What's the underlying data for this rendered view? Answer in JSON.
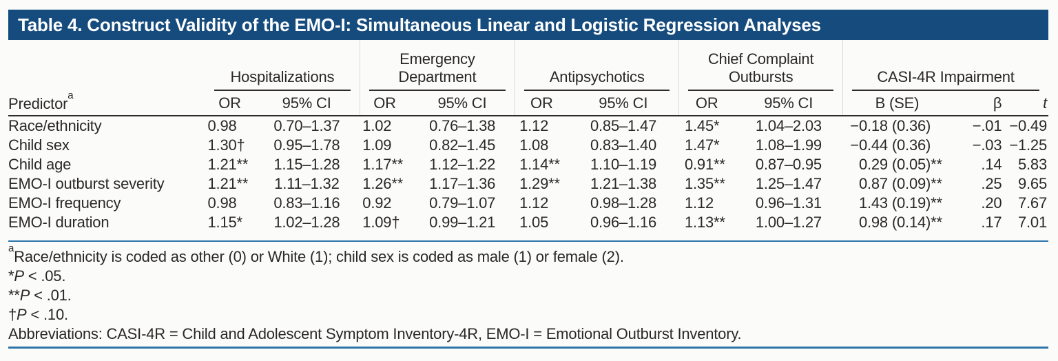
{
  "title": "Table 4. Construct Validity of the EMO-I: Simultaneous Linear and Logistic Regression Analyses",
  "header": {
    "predictor_label": "Predictor",
    "predictor_sup": "a",
    "groups": [
      {
        "label": "Hospitalizations",
        "cols": [
          "OR",
          "95% CI"
        ]
      },
      {
        "label": "Emergency\nDepartment",
        "cols": [
          "OR",
          "95% CI"
        ]
      },
      {
        "label": "Antipsychotics",
        "cols": [
          "OR",
          "95% CI"
        ]
      },
      {
        "label": "Chief Complaint\nOutbursts",
        "cols": [
          "OR",
          "95% CI"
        ]
      },
      {
        "label": "CASI-4R Impairment",
        "cols": [
          "B (SE)",
          "β",
          "t"
        ]
      }
    ]
  },
  "rows": [
    {
      "predictor": "Race/ethnicity",
      "c": [
        {
          "m": "0.98",
          "s": ""
        },
        {
          "m": "0.70–1.37",
          "s": ""
        },
        {
          "m": "1.02",
          "s": ""
        },
        {
          "m": "0.76–1.38",
          "s": ""
        },
        {
          "m": "1.12",
          "s": ""
        },
        {
          "m": "0.85–1.47",
          "s": ""
        },
        {
          "m": "1.45",
          "s": "*"
        },
        {
          "m": "1.04–2.03",
          "s": ""
        },
        {
          "m": "−0.18 (0.36)",
          "s": ""
        },
        {
          "m": "−.01",
          "s": ""
        },
        {
          "m": "−0.49",
          "s": ""
        }
      ]
    },
    {
      "predictor": "Child sex",
      "c": [
        {
          "m": "1.30",
          "s": "†"
        },
        {
          "m": "0.95–1.78",
          "s": ""
        },
        {
          "m": "1.09",
          "s": ""
        },
        {
          "m": "0.82–1.45",
          "s": ""
        },
        {
          "m": "1.08",
          "s": ""
        },
        {
          "m": "0.83–1.40",
          "s": ""
        },
        {
          "m": "1.47",
          "s": "*"
        },
        {
          "m": "1.08–1.99",
          "s": ""
        },
        {
          "m": "−0.44 (0.36)",
          "s": ""
        },
        {
          "m": "−.03",
          "s": ""
        },
        {
          "m": "−1.25",
          "s": ""
        }
      ]
    },
    {
      "predictor": "Child age",
      "c": [
        {
          "m": "1.21",
          "s": "**"
        },
        {
          "m": "1.15–1.28",
          "s": ""
        },
        {
          "m": "1.17",
          "s": "**"
        },
        {
          "m": "1.12–1.22",
          "s": ""
        },
        {
          "m": "1.14",
          "s": "**"
        },
        {
          "m": "1.10–1.19",
          "s": ""
        },
        {
          "m": "0.91",
          "s": "**"
        },
        {
          "m": "0.87–0.95",
          "s": ""
        },
        {
          "m": "0.29 (0.05)",
          "s": "**"
        },
        {
          "m": ".14",
          "s": ""
        },
        {
          "m": "5.83",
          "s": ""
        }
      ]
    },
    {
      "predictor": "EMO-I outburst severity",
      "c": [
        {
          "m": "1.21",
          "s": "**"
        },
        {
          "m": "1.11–1.32",
          "s": ""
        },
        {
          "m": "1.26",
          "s": "**"
        },
        {
          "m": "1.17–1.36",
          "s": ""
        },
        {
          "m": "1.29",
          "s": "**"
        },
        {
          "m": "1.21–1.38",
          "s": ""
        },
        {
          "m": "1.35",
          "s": "**"
        },
        {
          "m": "1.25–1.47",
          "s": ""
        },
        {
          "m": "0.87 (0.09)",
          "s": "**"
        },
        {
          "m": ".25",
          "s": ""
        },
        {
          "m": "9.65",
          "s": ""
        }
      ]
    },
    {
      "predictor": "EMO-I frequency",
      "c": [
        {
          "m": "0.98",
          "s": ""
        },
        {
          "m": "0.83–1.16",
          "s": ""
        },
        {
          "m": "0.92",
          "s": ""
        },
        {
          "m": "0.79–1.07",
          "s": ""
        },
        {
          "m": "1.12",
          "s": ""
        },
        {
          "m": "0.98–1.28",
          "s": ""
        },
        {
          "m": "1.12",
          "s": ""
        },
        {
          "m": "0.96–1.31",
          "s": ""
        },
        {
          "m": "1.43 (0.19)",
          "s": "**"
        },
        {
          "m": ".20",
          "s": ""
        },
        {
          "m": "7.67",
          "s": ""
        }
      ]
    },
    {
      "predictor": "EMO-I duration",
      "c": [
        {
          "m": "1.15",
          "s": "*"
        },
        {
          "m": "1.02–1.28",
          "s": ""
        },
        {
          "m": "1.09",
          "s": "†"
        },
        {
          "m": "0.99–1.21",
          "s": ""
        },
        {
          "m": "1.05",
          "s": ""
        },
        {
          "m": "0.96–1.16",
          "s": ""
        },
        {
          "m": "1.13",
          "s": "**"
        },
        {
          "m": "1.00–1.27",
          "s": ""
        },
        {
          "m": "0.98 (0.14)",
          "s": "**"
        },
        {
          "m": ".17",
          "s": ""
        },
        {
          "m": "7.01",
          "s": ""
        }
      ]
    }
  ],
  "footnotes": {
    "a_sup": "a",
    "a_text": "Race/ethnicity is coded as other (0) or White (1); child sex is coded as male (1) or female (2).",
    "p05": {
      "sym": "*",
      "p": "P",
      "rest": " < .05."
    },
    "p01": {
      "sym": "**",
      "p": "P",
      "rest": " < .01."
    },
    "p10": {
      "sym": "†",
      "p": "P",
      "rest": " < .10."
    },
    "abbreviations": "Abbreviations: CASI-4R = Child and Adolescent Symptom Inventory-4R, EMO-I = Emotional Outburst Inventory."
  },
  "colors": {
    "band": "#154b7d",
    "brule": "#2c74a8",
    "hrule": "#2e2a2b",
    "text": "#2b2728",
    "bg": "#fbfcfa",
    "sep": "#d9d9d9"
  }
}
